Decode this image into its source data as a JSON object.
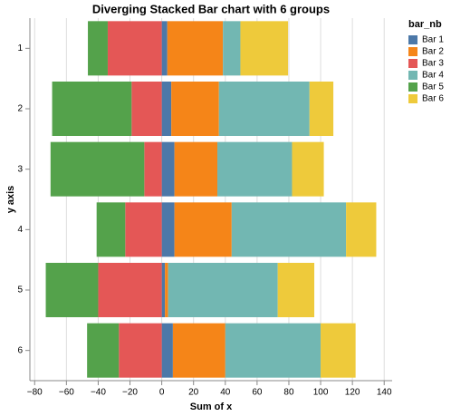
{
  "chart_data": {
    "type": "diverging-stacked-bar",
    "title": "Diverging Stacked Bar chart with 6 groups",
    "x_label": "Sum of x",
    "y_label": "y axis",
    "legend_title": "bar_nb",
    "categories": [
      "1",
      "2",
      "3",
      "4",
      "5",
      "6"
    ],
    "series": [
      {
        "name": "Bar 1",
        "color": "#4c78a8",
        "values": [
          3.5,
          6,
          8,
          8,
          2,
          7
        ]
      },
      {
        "name": "Bar 2",
        "color": "#f58518",
        "values": [
          35,
          30,
          27,
          36,
          2,
          33
        ]
      },
      {
        "name": "Bar 3",
        "color": "#e45756",
        "values": [
          -34,
          -19,
          -11,
          -23,
          -40,
          -27
        ]
      },
      {
        "name": "Bar 4",
        "color": "#72b7b2",
        "values": [
          11,
          57,
          47,
          72,
          69,
          60
        ]
      },
      {
        "name": "Bar 5",
        "color": "#54a24b",
        "values": [
          -12.5,
          -50,
          -59,
          -18,
          -33,
          -20
        ]
      },
      {
        "name": "Bar 6",
        "color": "#eeca3b",
        "values": [
          30,
          15,
          20,
          19,
          23,
          22
        ]
      }
    ],
    "xlim": [
      -83,
      145
    ],
    "xticks": [
      {
        "value": -80,
        "label": "−80"
      },
      {
        "value": -60,
        "label": "−60"
      },
      {
        "value": -40,
        "label": "−40"
      },
      {
        "value": -20,
        "label": "−20"
      },
      0,
      20,
      40,
      60,
      80,
      100,
      120,
      140
    ],
    "grid": true,
    "legend": "right"
  }
}
